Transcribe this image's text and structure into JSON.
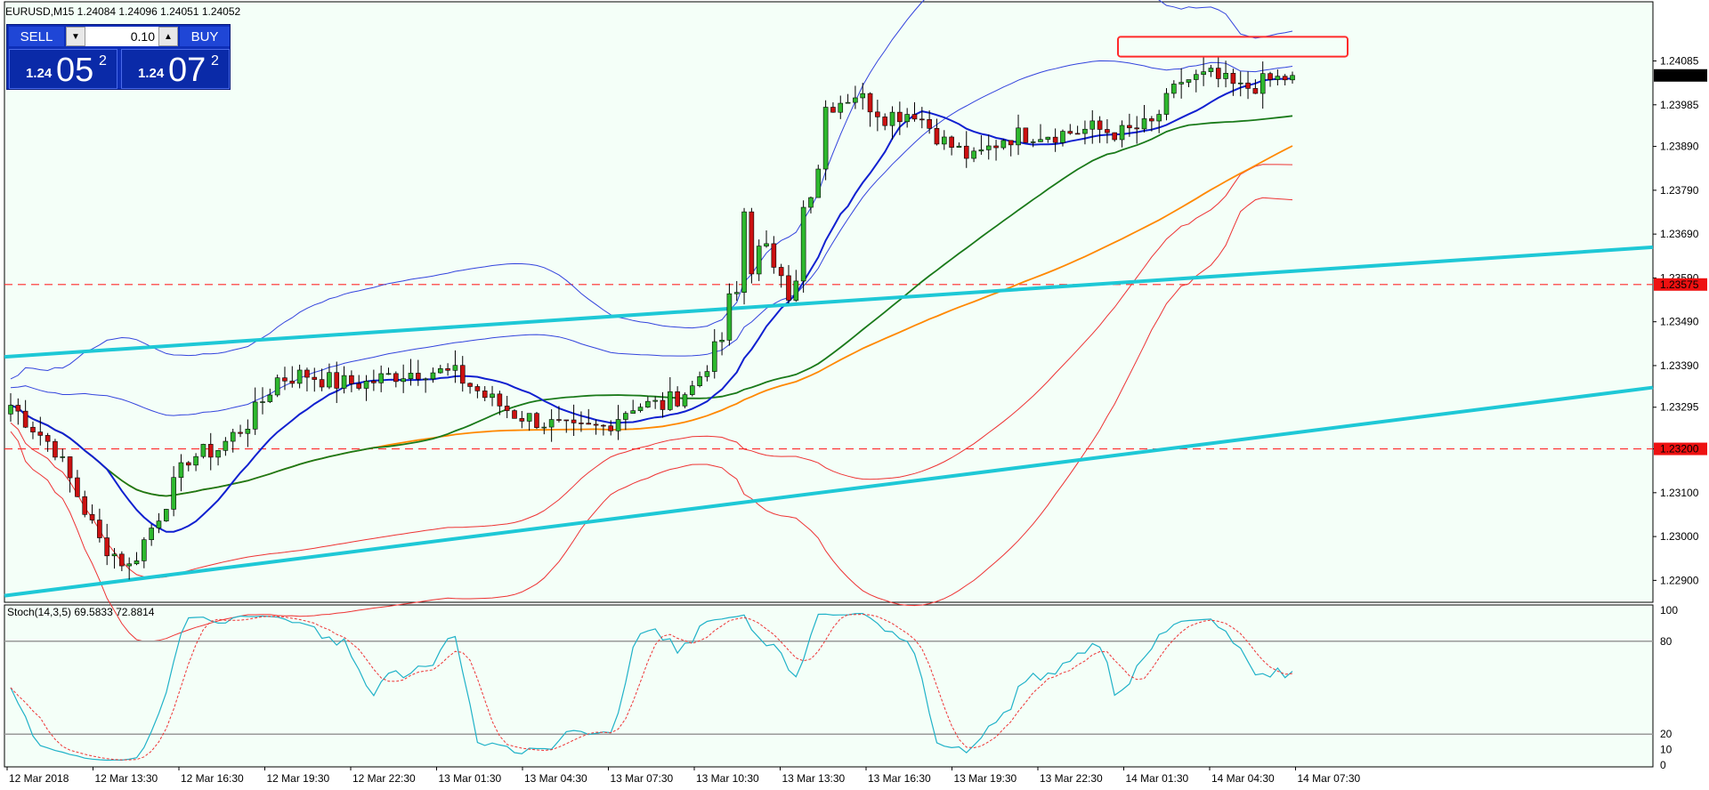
{
  "header": {
    "symbol_line": "EURUSD,M15  1.24084 1.24096 1.24051 1.24052",
    "stoch_line": "Stoch(14,3,5) 69.5833 72.8814"
  },
  "trade_panel": {
    "sell_label": "SELL",
    "buy_label": "BUY",
    "lot_value": "0.10",
    "bid": {
      "prefix": "1.24",
      "big": "05",
      "sup": "2"
    },
    "ask": {
      "prefix": "1.24",
      "big": "07",
      "sup": "2"
    }
  },
  "price_axis": {
    "ticks": [
      "1.24085",
      "1.23985",
      "1.23890",
      "1.23790",
      "1.23690",
      "1.23590",
      "1.23490",
      "1.23390",
      "1.23295",
      "1.23200",
      "1.23100",
      "1.23000",
      "1.22900"
    ],
    "current_price": "1.24052",
    "level_upper": "1.23575",
    "level_lower": "1.23200"
  },
  "stoch_axis": {
    "ticks": [
      "100",
      "80",
      "20",
      "10",
      "0"
    ]
  },
  "time_axis": {
    "labels": [
      "12 Mar 2018",
      "12 Mar 13:30",
      "12 Mar 16:30",
      "12 Mar 19:30",
      "12 Mar 22:30",
      "13 Mar 01:30",
      "13 Mar 04:30",
      "13 Mar 07:30",
      "13 Mar 10:30",
      "13 Mar 13:30",
      "13 Mar 16:30",
      "13 Mar 19:30",
      "13 Mar 22:30",
      "14 Mar 01:30",
      "14 Mar 04:30",
      "14 Mar 07:30"
    ]
  },
  "colors": {
    "background": "#f4fff8",
    "bull": "#2eb82e",
    "bear": "#cc1111",
    "trendline": "#1ec8d6",
    "level": "#ff2a2a",
    "ma_fast": "#1020d0",
    "ma_green": "#1a7a1a",
    "ma_orange": "#ff8800",
    "bands_blue": "#3344dd",
    "bands_red": "#ee3333"
  },
  "chart_data": {
    "type": "candlestick",
    "symbol": "EURUSD",
    "timeframe": "M15",
    "last_bar": {
      "open": 1.24084,
      "high": 1.24096,
      "low": 1.24051,
      "close": 1.24052
    },
    "ylim": [
      1.2285,
      1.2422
    ],
    "horizontal_levels": [
      1.23575,
      1.232
    ],
    "stochastic": {
      "params": "14,3,5",
      "main": 69.5833,
      "signal": 72.8814,
      "levels": [
        80,
        20
      ]
    },
    "close_path": [
      {
        "t": 0,
        "p": 1.233
      },
      {
        "t": 6,
        "p": 1.232
      },
      {
        "t": 12,
        "p": 1.2299
      },
      {
        "t": 16,
        "p": 1.2293
      },
      {
        "t": 20,
        "p": 1.2305
      },
      {
        "t": 24,
        "p": 1.2318
      },
      {
        "t": 28,
        "p": 1.232
      },
      {
        "t": 32,
        "p": 1.2326
      },
      {
        "t": 36,
        "p": 1.2336
      },
      {
        "t": 40,
        "p": 1.2337
      },
      {
        "t": 44,
        "p": 1.2335
      },
      {
        "t": 48,
        "p": 1.2335
      },
      {
        "t": 52,
        "p": 1.2337
      },
      {
        "t": 56,
        "p": 1.2338
      },
      {
        "t": 60,
        "p": 1.2337
      },
      {
        "t": 64,
        "p": 1.2332
      },
      {
        "t": 68,
        "p": 1.2328
      },
      {
        "t": 72,
        "p": 1.2326
      },
      {
        "t": 76,
        "p": 1.2324
      },
      {
        "t": 80,
        "p": 1.2325
      },
      {
        "t": 84,
        "p": 1.233
      },
      {
        "t": 88,
        "p": 1.233
      },
      {
        "t": 92,
        "p": 1.2334
      },
      {
        "t": 96,
        "p": 1.2345
      },
      {
        "t": 99,
        "p": 1.2368
      },
      {
        "t": 102,
        "p": 1.2364
      },
      {
        "t": 106,
        "p": 1.236
      },
      {
        "t": 110,
        "p": 1.2398
      },
      {
        "t": 114,
        "p": 1.2401
      },
      {
        "t": 118,
        "p": 1.2396
      },
      {
        "t": 122,
        "p": 1.2397
      },
      {
        "t": 126,
        "p": 1.239
      },
      {
        "t": 130,
        "p": 1.2386
      },
      {
        "t": 134,
        "p": 1.2391
      },
      {
        "t": 138,
        "p": 1.2392
      },
      {
        "t": 142,
        "p": 1.2392
      },
      {
        "t": 146,
        "p": 1.2393
      },
      {
        "t": 150,
        "p": 1.2392
      },
      {
        "t": 154,
        "p": 1.2394
      },
      {
        "t": 158,
        "p": 1.2404
      },
      {
        "t": 162,
        "p": 1.2405
      },
      {
        "t": 166,
        "p": 1.2402
      },
      {
        "t": 170,
        "p": 1.2404
      },
      {
        "t": 173,
        "p": 1.2405
      }
    ]
  }
}
